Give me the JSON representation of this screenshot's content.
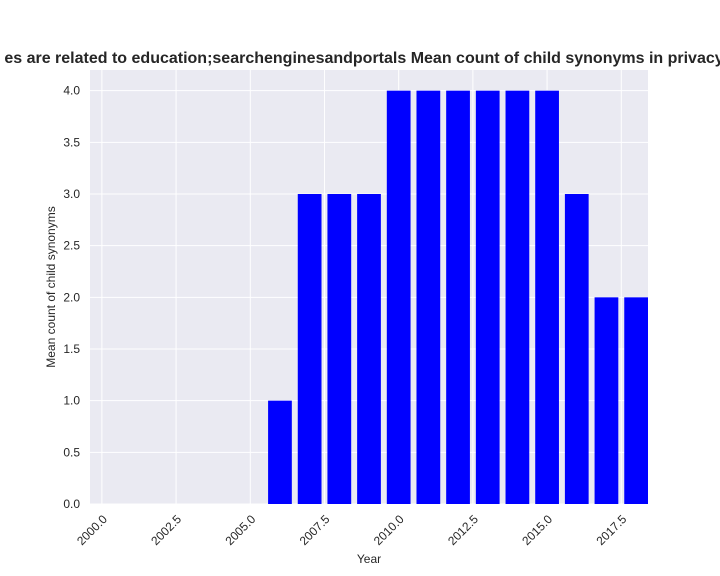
{
  "chart_data": {
    "type": "bar",
    "title": "es are related to education;searchenginesandportals Mean count of child synonyms in privacy",
    "xlabel": "Year",
    "ylabel": "Mean count of child synonyms",
    "x": [
      2006,
      2007,
      2008,
      2009,
      2010,
      2011,
      2012,
      2013,
      2014,
      2015,
      2016,
      2017,
      2018
    ],
    "values": [
      1,
      3,
      3,
      3,
      4,
      4,
      4,
      4,
      4,
      4,
      3,
      2,
      2
    ],
    "xlim": [
      1999.6,
      2018.4
    ],
    "ylim": [
      0,
      4.2
    ],
    "xticks": [
      2000.0,
      2002.5,
      2005.0,
      2007.5,
      2010.0,
      2012.5,
      2015.0,
      2017.5
    ],
    "xtick_labels": [
      "2000.0",
      "2002.5",
      "2005.0",
      "2007.5",
      "2010.0",
      "2012.5",
      "2015.0",
      "2017.5"
    ],
    "yticks": [
      0,
      0.5,
      1.0,
      1.5,
      2.0,
      2.5,
      3.0,
      3.5,
      4.0
    ],
    "ytick_labels": [
      "0.0",
      "0.5",
      "1.0",
      "1.5",
      "2.0",
      "2.5",
      "3.0",
      "3.5",
      "4.0"
    ],
    "bar_width": 0.8,
    "bar_color": "#0000ff",
    "plot_background": "#eaeaf2",
    "grid": true,
    "grid_color": "#ffffff"
  }
}
